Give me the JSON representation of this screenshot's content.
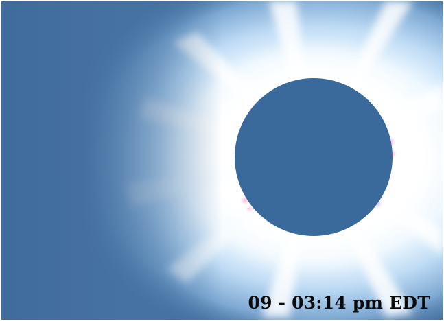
{
  "image": {
    "subject": "total-solar-eclipse",
    "colors": {
      "sky": "#3f6c9c",
      "corona_core": "#ffffff",
      "corona_mid": "#dcefff",
      "corona_outer": "#9cc8ef",
      "moon_disk": "#3a6a9b",
      "prominence": "#ff8fc7",
      "caption_text": "#0b0b0b"
    }
  },
  "caption": {
    "timestamp": "09 - 03:14 pm EDT"
  }
}
